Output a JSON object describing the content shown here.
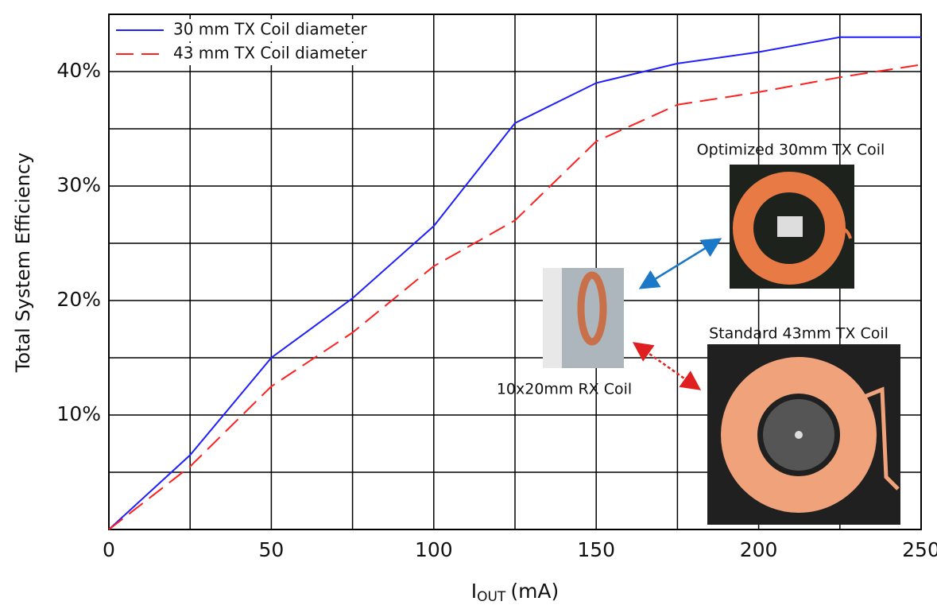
{
  "chart_data": {
    "type": "line",
    "x": [
      0,
      25,
      50,
      75,
      100,
      125,
      150,
      175,
      200,
      225,
      250
    ],
    "series": [
      {
        "name": "30 mm TX Coil diameter",
        "color": "#1f1fff",
        "dash": "solid",
        "values": [
          0,
          6.5,
          15,
          20.2,
          26.5,
          35.5,
          39,
          40.7,
          41.7,
          43,
          43
        ]
      },
      {
        "name": "43 mm TX Coil diameter",
        "color": "#ff2020",
        "dash": "dashed",
        "values": [
          0,
          5.5,
          12.5,
          17.2,
          23,
          27,
          33.9,
          37.1,
          38.2,
          39.5,
          40.6
        ]
      }
    ],
    "xlabel": {
      "main": "I",
      "sub": "OUT",
      "unit": "(mA)"
    },
    "ylabel": "Total System Efficiency",
    "xlim": [
      0,
      250
    ],
    "ylim": [
      0,
      45
    ],
    "xticks": [
      0,
      50,
      100,
      150,
      200,
      250
    ],
    "yticks": [
      {
        "value": 10,
        "label": "10%"
      },
      {
        "value": 20,
        "label": "20%"
      },
      {
        "value": 30,
        "label": "30%"
      },
      {
        "value": 40,
        "label": "40%"
      }
    ],
    "xgrid": [
      25,
      50,
      75,
      100,
      125,
      150,
      175,
      200,
      225
    ],
    "ygrid": [
      5,
      10,
      15,
      20,
      25,
      30,
      35,
      40
    ],
    "legend": "upper left",
    "annotations": [
      "Optimized 30mm TX Coil",
      "Standard 43mm TX Coil",
      "10x20mm RX Coil"
    ]
  }
}
